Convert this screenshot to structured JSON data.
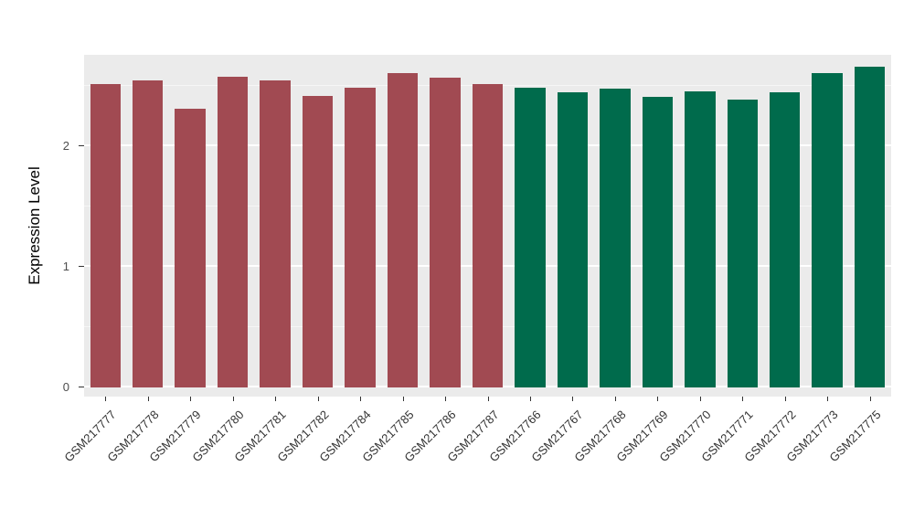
{
  "chart_data": {
    "type": "bar",
    "title": "",
    "xlabel": "",
    "ylabel": "Expression Level",
    "ylim": [
      0,
      2.76
    ],
    "yticks": [
      0,
      1,
      2
    ],
    "yticks_minor": [
      0.5,
      1.5,
      2.5
    ],
    "grid": "on",
    "legend": "none",
    "panel_background": "#EBEBEB",
    "categories": [
      "GSM217777",
      "GSM217778",
      "GSM217779",
      "GSM217780",
      "GSM217781",
      "GSM217782",
      "GSM217784",
      "GSM217785",
      "GSM217786",
      "GSM217787",
      "GSM217766",
      "GSM217767",
      "GSM217768",
      "GSM217769",
      "GSM217770",
      "GSM217771",
      "GSM217772",
      "GSM217773",
      "GSM217775"
    ],
    "values": [
      2.52,
      2.55,
      2.31,
      2.58,
      2.55,
      2.42,
      2.49,
      2.61,
      2.57,
      2.52,
      2.49,
      2.45,
      2.48,
      2.41,
      2.46,
      2.39,
      2.45,
      2.61,
      2.66
    ],
    "bar_colors": [
      "#A14A52",
      "#A14A52",
      "#A14A52",
      "#A14A52",
      "#A14A52",
      "#A14A52",
      "#A14A52",
      "#A14A52",
      "#A14A52",
      "#A14A52",
      "#006B4C",
      "#006B4C",
      "#006B4C",
      "#006B4C",
      "#006B4C",
      "#006B4C",
      "#006B4C",
      "#006B4C",
      "#006B4C"
    ],
    "group_colors": {
      "group_1": "#A14A52",
      "group_2": "#006B4C"
    }
  }
}
